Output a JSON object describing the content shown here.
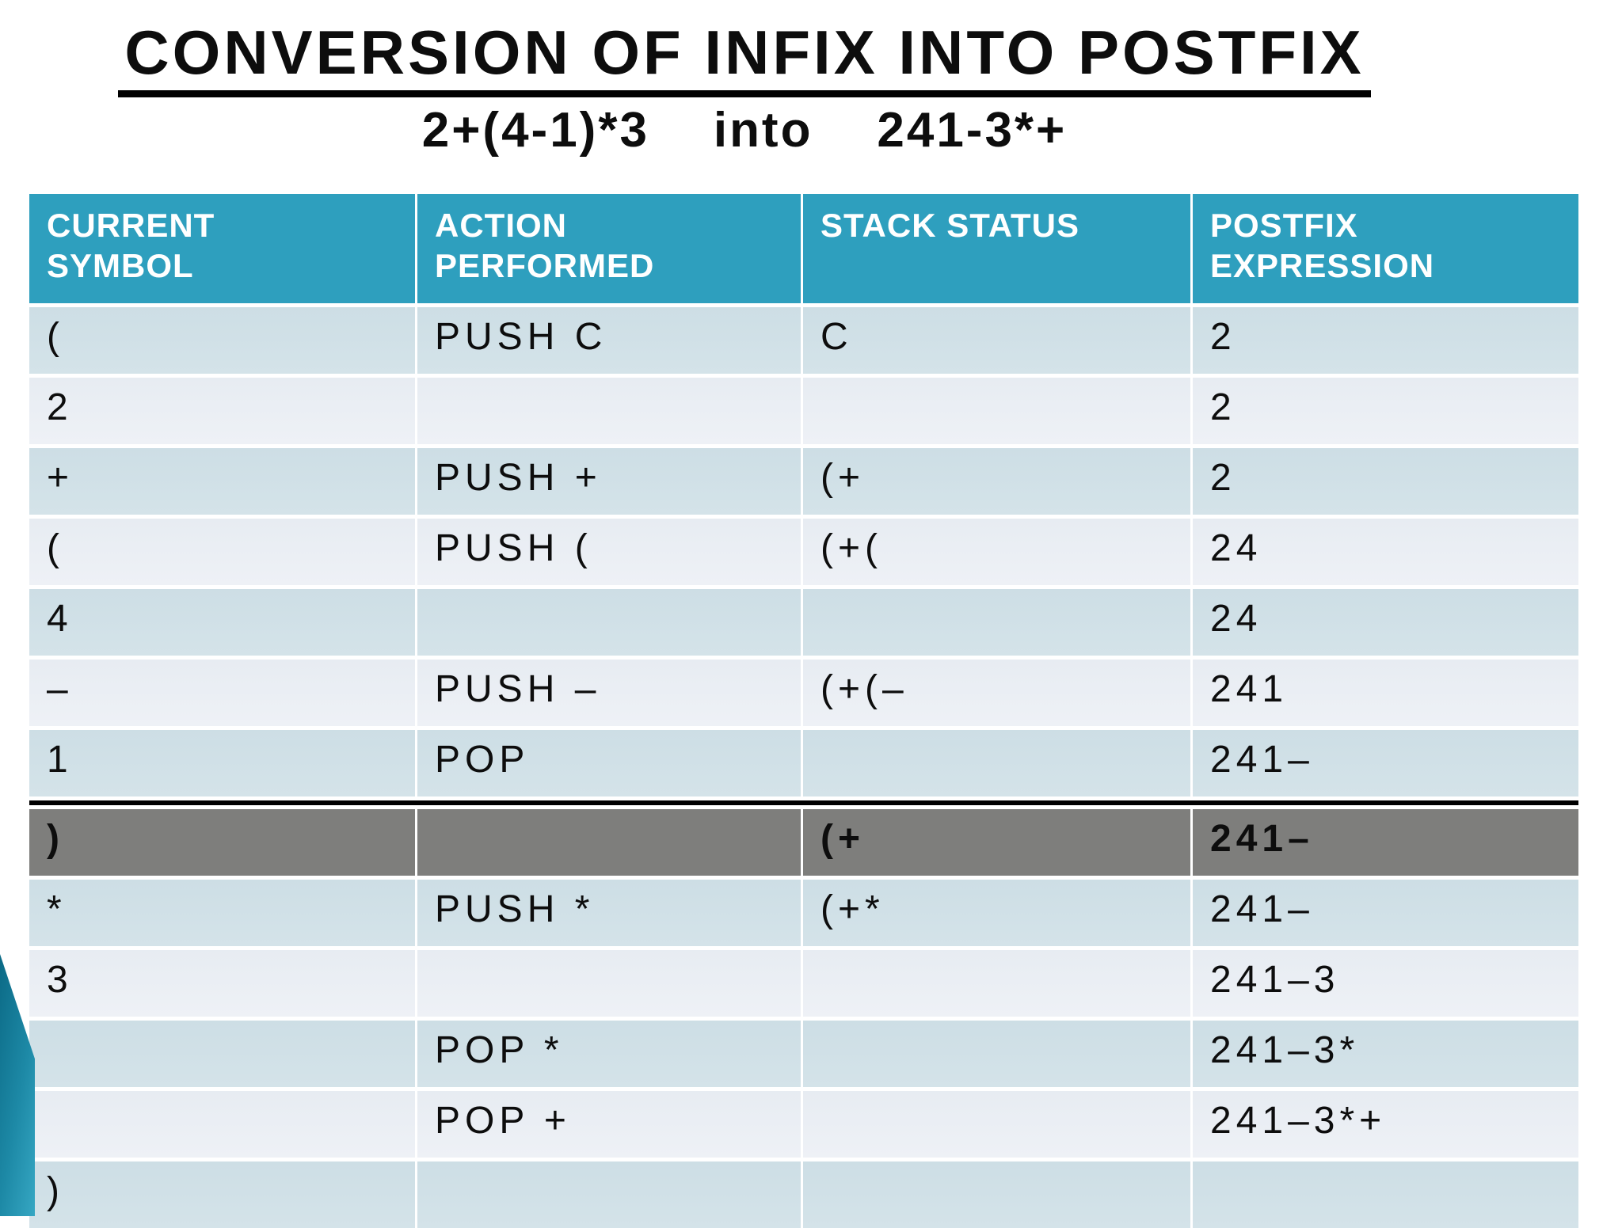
{
  "slide": {
    "title": "CONVERSION OF INFIX INTO POSTFIX",
    "subtitle": "2+(4-1)*3    into    241-3*+"
  },
  "table": {
    "columns": [
      "CURRENT\nSYMBOL",
      "ACTION\nPERFORMED",
      "STACK STATUS",
      "POSTFIX\nEXPRESSION"
    ],
    "rows": [
      {
        "symbol": "(",
        "action": "PUSH C",
        "stack": "C",
        "postfix": "2",
        "highlight": false
      },
      {
        "symbol": "2",
        "action": "",
        "stack": "",
        "postfix": "2",
        "highlight": false
      },
      {
        "symbol": "+",
        "action": "PUSH +",
        "stack": "(+",
        "postfix": "2",
        "highlight": false
      },
      {
        "symbol": "(",
        "action": "PUSH (",
        "stack": "(+(",
        "postfix": "24",
        "highlight": false
      },
      {
        "symbol": "4",
        "action": "",
        "stack": "",
        "postfix": "24",
        "highlight": false
      },
      {
        "symbol": "–",
        "action": "PUSH –",
        "stack": "(+(–",
        "postfix": "241",
        "highlight": false
      },
      {
        "symbol": "1",
        "action": "POP",
        "stack": "",
        "postfix": "241–",
        "highlight": false
      },
      {
        "symbol": ")",
        "action": "",
        "stack": "(+",
        "postfix": "241–",
        "highlight": true
      },
      {
        "symbol": "*",
        "action": "PUSH *",
        "stack": "(+*",
        "postfix": "241–",
        "highlight": false
      },
      {
        "symbol": "3",
        "action": "",
        "stack": "",
        "postfix": "241–3",
        "highlight": false
      },
      {
        "symbol": "",
        "action": "POP *",
        "stack": "",
        "postfix": "241–3*",
        "highlight": false
      },
      {
        "symbol": "",
        "action": "POP +",
        "stack": "",
        "postfix": "241–3*+",
        "highlight": false
      },
      {
        "symbol": ")",
        "action": "",
        "stack": "",
        "postfix": "",
        "highlight": false
      }
    ]
  },
  "colors": {
    "header_teal": "#2e9fbe",
    "row_dark": "#cfdfe6",
    "row_light": "#e9edf3",
    "highlight_gray": "#7e7e7c",
    "divider_black": "#000000",
    "corner_teal": "#0b6a86"
  }
}
